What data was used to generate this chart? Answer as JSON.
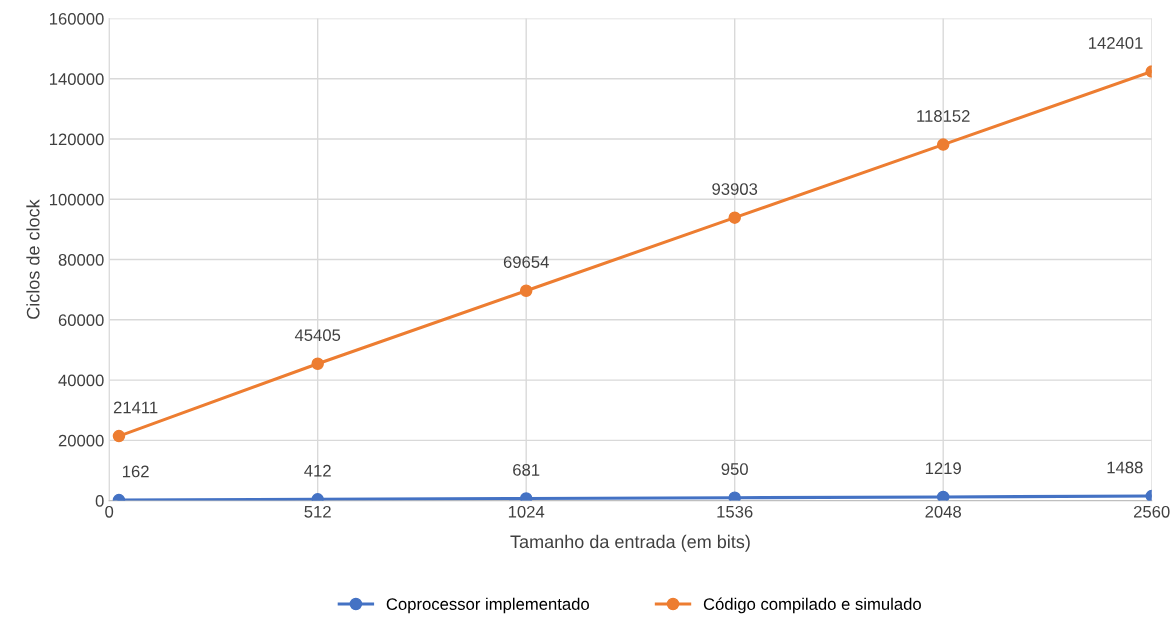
{
  "chart_data": {
    "type": "line",
    "xlabel": "Tamanho da entrada (em bits)",
    "ylabel": "Ciclos de clock",
    "x": [
      24,
      512,
      1024,
      1536,
      2048,
      2560
    ],
    "series": [
      {
        "name": "Coprocessor implementado",
        "color": "#4472c4",
        "values": [
          162,
          412,
          681,
          950,
          1219,
          1488
        ]
      },
      {
        "name": "Código compilado e simulado",
        "color": "#ed7d31",
        "values": [
          21411,
          45405,
          69654,
          93903,
          118152,
          142401
        ]
      }
    ],
    "xlim": [
      0,
      2560
    ],
    "xticks": [
      0,
      512,
      1024,
      1536,
      2048,
      2560
    ],
    "ylim": [
      0,
      160000
    ],
    "yticks": [
      0,
      20000,
      40000,
      60000,
      80000,
      100000,
      120000,
      140000,
      160000
    ],
    "grid": true,
    "legend": "bottom",
    "marker": "circle",
    "line_style": "solid",
    "data_labels": true
  }
}
